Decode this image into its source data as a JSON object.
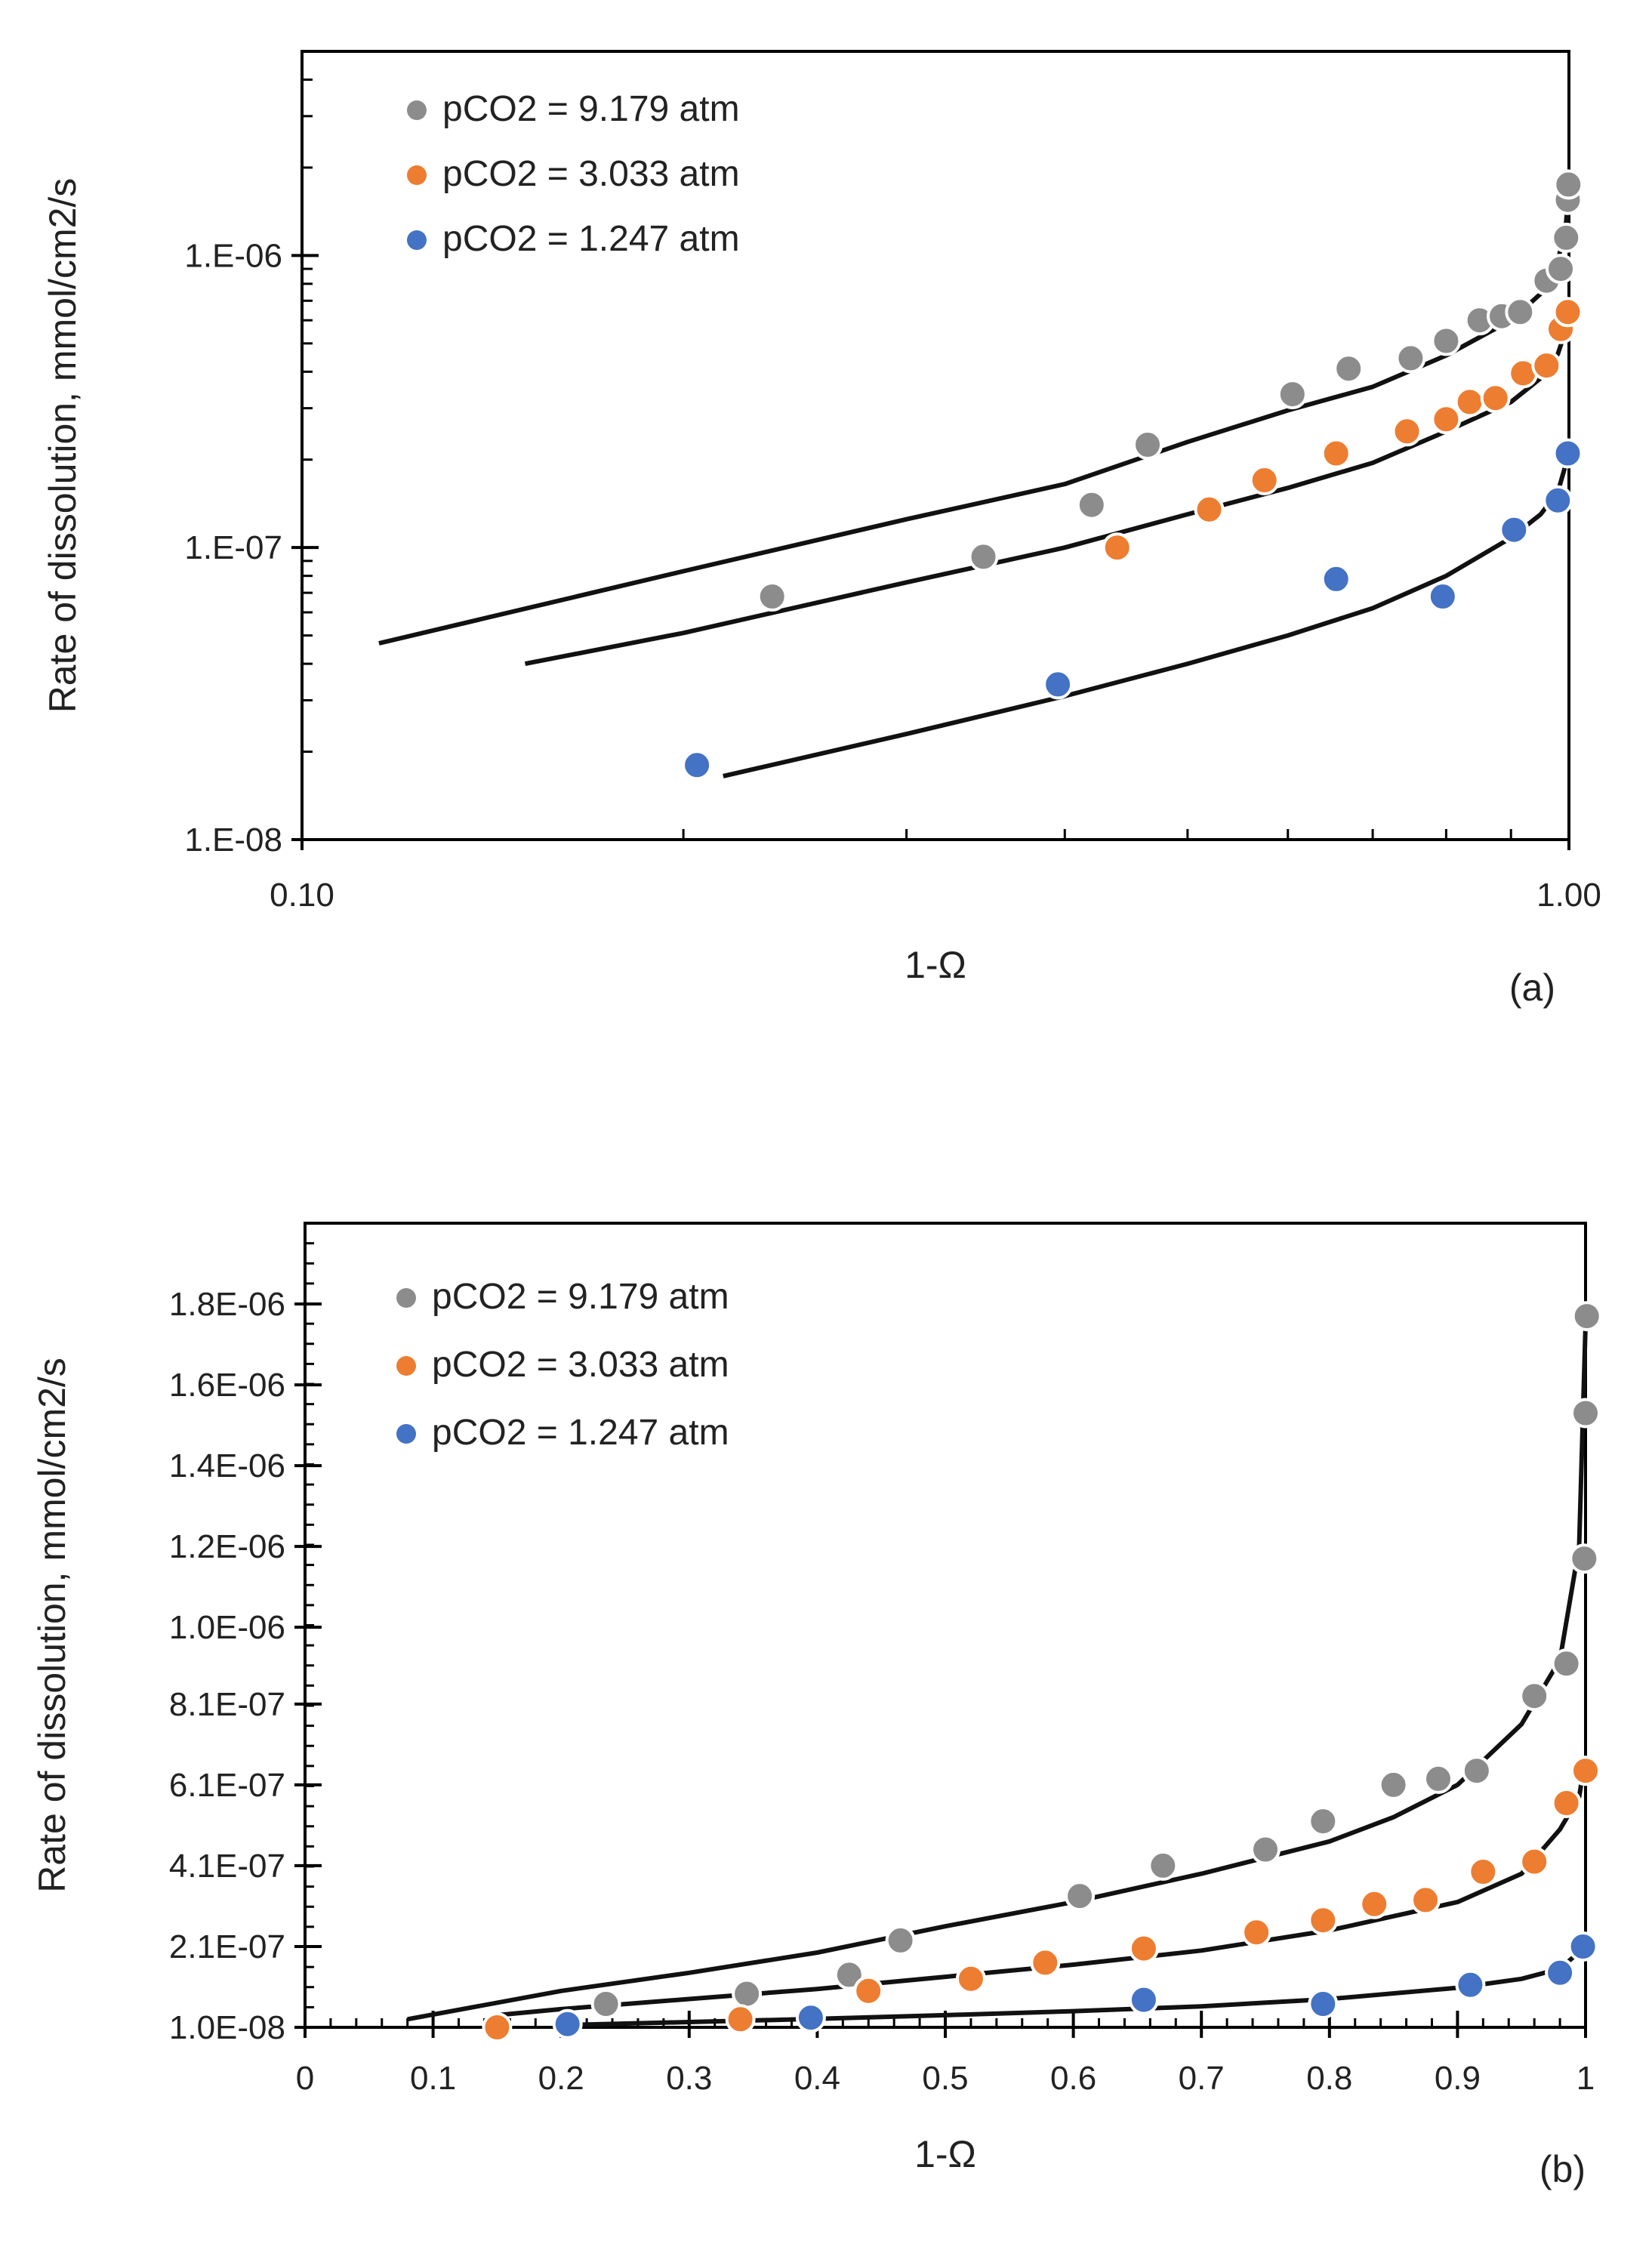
{
  "colors": {
    "gray": "#8c8c8c",
    "orange": "#ed7d31",
    "blue": "#4472c4",
    "line": "#111111",
    "axis": "#000000"
  },
  "chart_data": [
    {
      "type": "scatter",
      "panel_label": "(a)",
      "xlabel": "1-Ω",
      "ylabel": "Rate of dissolution, mmol/cm2/s",
      "x_scale": "log",
      "y_scale": "log",
      "xlim": [
        0.1,
        1.0
      ],
      "ylim": [
        1e-08,
        5e-06
      ],
      "x_ticks": [
        0.1,
        1.0
      ],
      "x_tick_labels": [
        "0.10",
        "1.00"
      ],
      "y_ticks": [
        1e-08,
        1e-07,
        1e-06
      ],
      "y_tick_labels": [
        "1.E-08",
        "1.E-07",
        "1.E-06"
      ],
      "legend": {
        "placement": "top-left",
        "entries": [
          "pCO2 = 9.179 atm",
          "pCO2 = 3.033 atm",
          "pCO2 = 1.247 atm"
        ]
      },
      "series": [
        {
          "name": "pCO2 = 9.179 atm",
          "color_key": "gray",
          "points": [
            [
              0.235,
              6.8e-08
            ],
            [
              0.345,
              9.3e-08
            ],
            [
              0.42,
              1.4e-07
            ],
            [
              0.465,
              2.25e-07
            ],
            [
              0.605,
              3.35e-07
            ],
            [
              0.67,
              4.1e-07
            ],
            [
              0.75,
              4.45e-07
            ],
            [
              0.8,
              5.1e-07
            ],
            [
              0.85,
              6e-07
            ],
            [
              0.885,
              6.2e-07
            ],
            [
              0.915,
              6.4e-07
            ],
            [
              0.96,
              8.2e-07
            ],
            [
              0.985,
              9e-07
            ],
            [
              0.995,
              1.15e-06
            ],
            [
              0.998,
              1.55e-06
            ],
            [
              0.999,
              1.75e-06
            ]
          ],
          "fit": [
            [
              0.115,
              4.7e-08
            ],
            [
              0.2,
              8.3e-08
            ],
            [
              0.3,
              1.25e-07
            ],
            [
              0.4,
              1.65e-07
            ],
            [
              0.5,
              2.3e-07
            ],
            [
              0.6,
              2.95e-07
            ],
            [
              0.7,
              3.55e-07
            ],
            [
              0.8,
              4.55e-07
            ],
            [
              0.9,
              6e-07
            ],
            [
              0.95,
              7.4e-07
            ],
            [
              0.98,
              9.5e-07
            ],
            [
              0.995,
              1.3e-06
            ],
            [
              1.0,
              1.75e-06
            ]
          ]
        },
        {
          "name": "pCO2 = 3.033 atm",
          "color_key": "orange",
          "points": [
            [
              0.44,
              1e-07
            ],
            [
              0.52,
              1.35e-07
            ],
            [
              0.575,
              1.7e-07
            ],
            [
              0.655,
              2.1e-07
            ],
            [
              0.745,
              2.5e-07
            ],
            [
              0.8,
              2.75e-07
            ],
            [
              0.835,
              3.15e-07
            ],
            [
              0.875,
              3.25e-07
            ],
            [
              0.92,
              3.95e-07
            ],
            [
              0.96,
              4.2e-07
            ],
            [
              0.985,
              5.6e-07
            ],
            [
              0.998,
              6.4e-07
            ]
          ],
          "fit": [
            [
              0.15,
              4e-08
            ],
            [
              0.2,
              5.1e-08
            ],
            [
              0.3,
              7.6e-08
            ],
            [
              0.4,
              1e-07
            ],
            [
              0.5,
              1.3e-07
            ],
            [
              0.6,
              1.6e-07
            ],
            [
              0.7,
              1.95e-07
            ],
            [
              0.8,
              2.5e-07
            ],
            [
              0.9,
              3.15e-07
            ],
            [
              0.95,
              3.8e-07
            ],
            [
              0.98,
              4.6e-07
            ],
            [
              0.995,
              5.6e-07
            ],
            [
              1.0,
              6.4e-07
            ]
          ]
        },
        {
          "name": "pCO2 = 1.247 atm",
          "color_key": "blue",
          "points": [
            [
              0.205,
              1.8e-08
            ],
            [
              0.395,
              3.4e-08
            ],
            [
              0.655,
              7.8e-08
            ],
            [
              0.795,
              6.8e-08
            ],
            [
              0.905,
              1.15e-07
            ],
            [
              0.98,
              1.45e-07
            ],
            [
              0.998,
              2.1e-07
            ]
          ],
          "fit": [
            [
              0.215,
              1.65e-08
            ],
            [
              0.3,
              2.3e-08
            ],
            [
              0.4,
              3.1e-08
            ],
            [
              0.5,
              4e-08
            ],
            [
              0.6,
              5e-08
            ],
            [
              0.7,
              6.2e-08
            ],
            [
              0.8,
              8e-08
            ],
            [
              0.9,
              1.08e-07
            ],
            [
              0.95,
              1.3e-07
            ],
            [
              0.98,
              1.55e-07
            ],
            [
              1.0,
              2.1e-07
            ]
          ]
        }
      ]
    },
    {
      "type": "scatter",
      "panel_label": "(b)",
      "xlabel": "1-Ω",
      "ylabel": "Rate of dissolution, mmol/cm2/s",
      "x_scale": "linear",
      "y_scale": "linear",
      "xlim": [
        0,
        1.0
      ],
      "ylim": [
        1e-08,
        2e-06
      ],
      "x_ticks": [
        0,
        0.1,
        0.2,
        0.3,
        0.4,
        0.5,
        0.6,
        0.7,
        0.8,
        0.9,
        1.0
      ],
      "x_tick_labels": [
        "0",
        "0.1",
        "0.2",
        "0.3",
        "0.4",
        "0.5",
        "0.6",
        "0.7",
        "0.8",
        "0.9",
        "1"
      ],
      "y_ticks": [
        1e-08,
        2.1e-07,
        4.1e-07,
        6.1e-07,
        8.1e-07,
        1e-06,
        1.2e-06,
        1.4e-06,
        1.6e-06,
        1.8e-06
      ],
      "y_tick_labels": [
        "1.0E-08",
        "2.1E-07",
        "4.1E-07",
        "6.1E-07",
        "8.1E-07",
        "1.0E-06",
        "1.2E-06",
        "1.4E-06",
        "1.6E-06",
        "1.8E-06"
      ],
      "legend": {
        "placement": "top-left",
        "entries": [
          "pCO2 = 9.179 atm",
          "pCO2 = 3.033 atm",
          "pCO2 = 1.247 atm"
        ]
      },
      "series": [
        {
          "name": "pCO2 = 9.179 atm",
          "color_key": "gray",
          "points": [
            [
              0.235,
              6.8e-08
            ],
            [
              0.345,
              9.3e-08
            ],
            [
              0.425,
              1.4e-07
            ],
            [
              0.465,
              2.25e-07
            ],
            [
              0.605,
              3.35e-07
            ],
            [
              0.67,
              4.1e-07
            ],
            [
              0.75,
              4.5e-07
            ],
            [
              0.795,
              5.2e-07
            ],
            [
              0.85,
              6.1e-07
            ],
            [
              0.885,
              6.25e-07
            ],
            [
              0.915,
              6.45e-07
            ],
            [
              0.96,
              8.3e-07
            ],
            [
              0.985,
              9.1e-07
            ],
            [
              0.999,
              1.17e-06
            ],
            [
              1.0,
              1.53e-06
            ],
            [
              1.001,
              1.77e-06
            ]
          ],
          "fit": [
            [
              0.08,
              3e-08
            ],
            [
              0.2,
              1e-07
            ],
            [
              0.3,
              1.45e-07
            ],
            [
              0.4,
              1.95e-07
            ],
            [
              0.5,
              2.6e-07
            ],
            [
              0.6,
              3.2e-07
            ],
            [
              0.7,
              3.9e-07
            ],
            [
              0.8,
              4.7e-07
            ],
            [
              0.85,
              5.3e-07
            ],
            [
              0.9,
              6.1e-07
            ],
            [
              0.95,
              7.6e-07
            ],
            [
              0.98,
              9.2e-07
            ],
            [
              0.995,
              1.2e-06
            ],
            [
              1.0,
              1.75e-06
            ]
          ]
        },
        {
          "name": "pCO2 = 3.033 atm",
          "color_key": "orange",
          "points": [
            [
              0.15,
              1e-08
            ],
            [
              0.34,
              3e-08
            ],
            [
              0.44,
              1e-07
            ],
            [
              0.52,
              1.3e-07
            ],
            [
              0.578,
              1.7e-07
            ],
            [
              0.655,
              2.05e-07
            ],
            [
              0.743,
              2.45e-07
            ],
            [
              0.795,
              2.75e-07
            ],
            [
              0.835,
              3.15e-07
            ],
            [
              0.875,
              3.25e-07
            ],
            [
              0.92,
              3.95e-07
            ],
            [
              0.96,
              4.2e-07
            ],
            [
              0.985,
              5.65e-07
            ],
            [
              1.0,
              6.45e-07
            ]
          ],
          "fit": [
            [
              0.15,
              4e-08
            ],
            [
              0.2,
              5.5e-08
            ],
            [
              0.3,
              8e-08
            ],
            [
              0.4,
              1.05e-07
            ],
            [
              0.5,
              1.35e-07
            ],
            [
              0.6,
              1.65e-07
            ],
            [
              0.7,
              2e-07
            ],
            [
              0.8,
              2.5e-07
            ],
            [
              0.9,
              3.2e-07
            ],
            [
              0.95,
              3.9e-07
            ],
            [
              0.98,
              5e-07
            ],
            [
              0.995,
              5.8e-07
            ],
            [
              1.0,
              6.8e-07
            ]
          ]
        },
        {
          "name": "pCO2 = 1.247 atm",
          "color_key": "blue",
          "points": [
            [
              0.205,
              1.8e-08
            ],
            [
              0.395,
              3.4e-08
            ],
            [
              0.655,
              7.8e-08
            ],
            [
              0.795,
              6.8e-08
            ],
            [
              0.91,
              1.15e-07
            ],
            [
              0.98,
              1.45e-07
            ],
            [
              0.998,
              2.1e-07
            ]
          ],
          "fit": [
            [
              0.215,
              1.65e-08
            ],
            [
              0.3,
              2.3e-08
            ],
            [
              0.4,
              3.1e-08
            ],
            [
              0.5,
              4e-08
            ],
            [
              0.6,
              5e-08
            ],
            [
              0.7,
              6.2e-08
            ],
            [
              0.8,
              8e-08
            ],
            [
              0.9,
              1.08e-07
            ],
            [
              0.95,
              1.3e-07
            ],
            [
              0.98,
              1.55e-07
            ],
            [
              1.0,
              2.1e-07
            ]
          ]
        }
      ]
    }
  ]
}
